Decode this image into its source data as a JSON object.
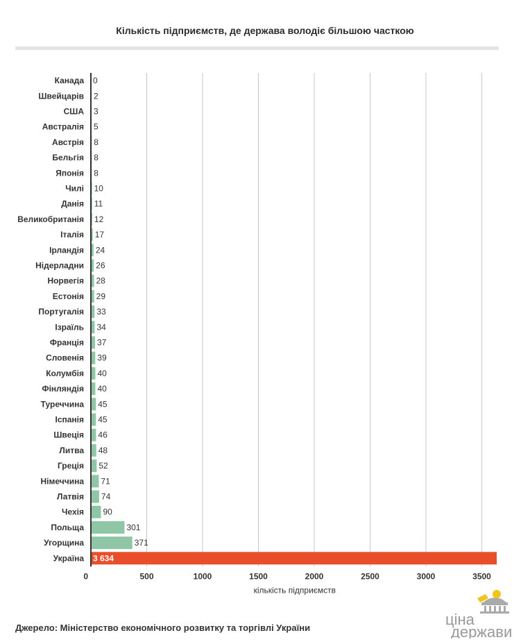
{
  "title": "Кількість підприємств, де держава володіє більшою часткою",
  "source": "Джерело: Міністерство економічного розвитку та торгівлі України",
  "logo": {
    "line1": "ціна",
    "line2": "держави",
    "icon": "parliament-dome-with-coin-icon",
    "color": "#999999",
    "accent": "#f0c419"
  },
  "colors": {
    "bar": "#8fc7a6",
    "highlight_bar": "#e84e2a",
    "grid": "#c8c8c8",
    "axis": "#333333"
  },
  "chart_data": {
    "type": "bar",
    "orientation": "horizontal",
    "title": "Кількість підприємств, де держава володіє більшою часткою",
    "xlabel": "кількість підприємств",
    "ylabel": "",
    "xlim": [
      0,
      3650
    ],
    "xticks": [
      0,
      500,
      1000,
      1500,
      2000,
      2500,
      3000,
      3500
    ],
    "xtick_labels": [
      "0",
      "500",
      "1000",
      "1500",
      "2000",
      "2500",
      "3000",
      "3500"
    ],
    "grid": true,
    "highlight_category": "Україна",
    "categories": [
      "Канада",
      "Швейцарів",
      "США",
      "Австралія",
      "Австрія",
      "Бельгія",
      "Японія",
      "Чилі",
      "Данія",
      "Великобританія",
      "Італія",
      "Ірландія",
      "Нідерладни",
      "Норвегія",
      "Естонія",
      "Португалія",
      "Ізраїль",
      "Франція",
      "Словенія",
      "Колумбія",
      "Фінляндія",
      "Туреччина",
      "Іспанія",
      "Швеція",
      "Литва",
      "Греція",
      "Німеччина",
      "Латвія",
      "Чехія",
      "Польща",
      "Угорщина",
      "Україна"
    ],
    "values": [
      0,
      2,
      3,
      5,
      8,
      8,
      8,
      10,
      11,
      12,
      17,
      24,
      26,
      28,
      29,
      33,
      34,
      37,
      39,
      40,
      40,
      45,
      45,
      46,
      48,
      52,
      71,
      74,
      90,
      301,
      371,
      3634
    ],
    "value_labels": [
      "0",
      "2",
      "3",
      "5",
      "8",
      "8",
      "8",
      "10",
      "11",
      "12",
      "17",
      "24",
      "26",
      "28",
      "29",
      "33",
      "34",
      "37",
      "39",
      "40",
      "40",
      "45",
      "45",
      "46",
      "48",
      "52",
      "71",
      "74",
      "90",
      "301",
      "371",
      "3 634"
    ]
  }
}
